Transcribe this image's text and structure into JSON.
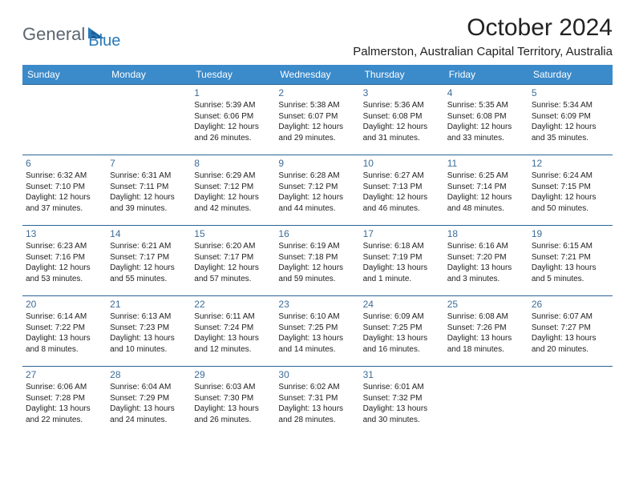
{
  "logo": {
    "text1": "General",
    "text2": "Blue"
  },
  "title": "October 2024",
  "location": "Palmerston, Australian Capital Territory, Australia",
  "header_bg": "#3b8aca",
  "header_fg": "#ffffff",
  "border_color": "#2a6496",
  "daynum_color": "#3e6d99",
  "weekdays": [
    "Sunday",
    "Monday",
    "Tuesday",
    "Wednesday",
    "Thursday",
    "Friday",
    "Saturday"
  ],
  "days": [
    {
      "n": "",
      "sr": "",
      "ss": "",
      "dl": ""
    },
    {
      "n": "",
      "sr": "",
      "ss": "",
      "dl": ""
    },
    {
      "n": "1",
      "sr": "5:39 AM",
      "ss": "6:06 PM",
      "dl": "12 hours and 26 minutes."
    },
    {
      "n": "2",
      "sr": "5:38 AM",
      "ss": "6:07 PM",
      "dl": "12 hours and 29 minutes."
    },
    {
      "n": "3",
      "sr": "5:36 AM",
      "ss": "6:08 PM",
      "dl": "12 hours and 31 minutes."
    },
    {
      "n": "4",
      "sr": "5:35 AM",
      "ss": "6:08 PM",
      "dl": "12 hours and 33 minutes."
    },
    {
      "n": "5",
      "sr": "5:34 AM",
      "ss": "6:09 PM",
      "dl": "12 hours and 35 minutes."
    },
    {
      "n": "6",
      "sr": "6:32 AM",
      "ss": "7:10 PM",
      "dl": "12 hours and 37 minutes."
    },
    {
      "n": "7",
      "sr": "6:31 AM",
      "ss": "7:11 PM",
      "dl": "12 hours and 39 minutes."
    },
    {
      "n": "8",
      "sr": "6:29 AM",
      "ss": "7:12 PM",
      "dl": "12 hours and 42 minutes."
    },
    {
      "n": "9",
      "sr": "6:28 AM",
      "ss": "7:12 PM",
      "dl": "12 hours and 44 minutes."
    },
    {
      "n": "10",
      "sr": "6:27 AM",
      "ss": "7:13 PM",
      "dl": "12 hours and 46 minutes."
    },
    {
      "n": "11",
      "sr": "6:25 AM",
      "ss": "7:14 PM",
      "dl": "12 hours and 48 minutes."
    },
    {
      "n": "12",
      "sr": "6:24 AM",
      "ss": "7:15 PM",
      "dl": "12 hours and 50 minutes."
    },
    {
      "n": "13",
      "sr": "6:23 AM",
      "ss": "7:16 PM",
      "dl": "12 hours and 53 minutes."
    },
    {
      "n": "14",
      "sr": "6:21 AM",
      "ss": "7:17 PM",
      "dl": "12 hours and 55 minutes."
    },
    {
      "n": "15",
      "sr": "6:20 AM",
      "ss": "7:17 PM",
      "dl": "12 hours and 57 minutes."
    },
    {
      "n": "16",
      "sr": "6:19 AM",
      "ss": "7:18 PM",
      "dl": "12 hours and 59 minutes."
    },
    {
      "n": "17",
      "sr": "6:18 AM",
      "ss": "7:19 PM",
      "dl": "13 hours and 1 minute."
    },
    {
      "n": "18",
      "sr": "6:16 AM",
      "ss": "7:20 PM",
      "dl": "13 hours and 3 minutes."
    },
    {
      "n": "19",
      "sr": "6:15 AM",
      "ss": "7:21 PM",
      "dl": "13 hours and 5 minutes."
    },
    {
      "n": "20",
      "sr": "6:14 AM",
      "ss": "7:22 PM",
      "dl": "13 hours and 8 minutes."
    },
    {
      "n": "21",
      "sr": "6:13 AM",
      "ss": "7:23 PM",
      "dl": "13 hours and 10 minutes."
    },
    {
      "n": "22",
      "sr": "6:11 AM",
      "ss": "7:24 PM",
      "dl": "13 hours and 12 minutes."
    },
    {
      "n": "23",
      "sr": "6:10 AM",
      "ss": "7:25 PM",
      "dl": "13 hours and 14 minutes."
    },
    {
      "n": "24",
      "sr": "6:09 AM",
      "ss": "7:25 PM",
      "dl": "13 hours and 16 minutes."
    },
    {
      "n": "25",
      "sr": "6:08 AM",
      "ss": "7:26 PM",
      "dl": "13 hours and 18 minutes."
    },
    {
      "n": "26",
      "sr": "6:07 AM",
      "ss": "7:27 PM",
      "dl": "13 hours and 20 minutes."
    },
    {
      "n": "27",
      "sr": "6:06 AM",
      "ss": "7:28 PM",
      "dl": "13 hours and 22 minutes."
    },
    {
      "n": "28",
      "sr": "6:04 AM",
      "ss": "7:29 PM",
      "dl": "13 hours and 24 minutes."
    },
    {
      "n": "29",
      "sr": "6:03 AM",
      "ss": "7:30 PM",
      "dl": "13 hours and 26 minutes."
    },
    {
      "n": "30",
      "sr": "6:02 AM",
      "ss": "7:31 PM",
      "dl": "13 hours and 28 minutes."
    },
    {
      "n": "31",
      "sr": "6:01 AM",
      "ss": "7:32 PM",
      "dl": "13 hours and 30 minutes."
    },
    {
      "n": "",
      "sr": "",
      "ss": "",
      "dl": ""
    },
    {
      "n": "",
      "sr": "",
      "ss": "",
      "dl": ""
    }
  ]
}
